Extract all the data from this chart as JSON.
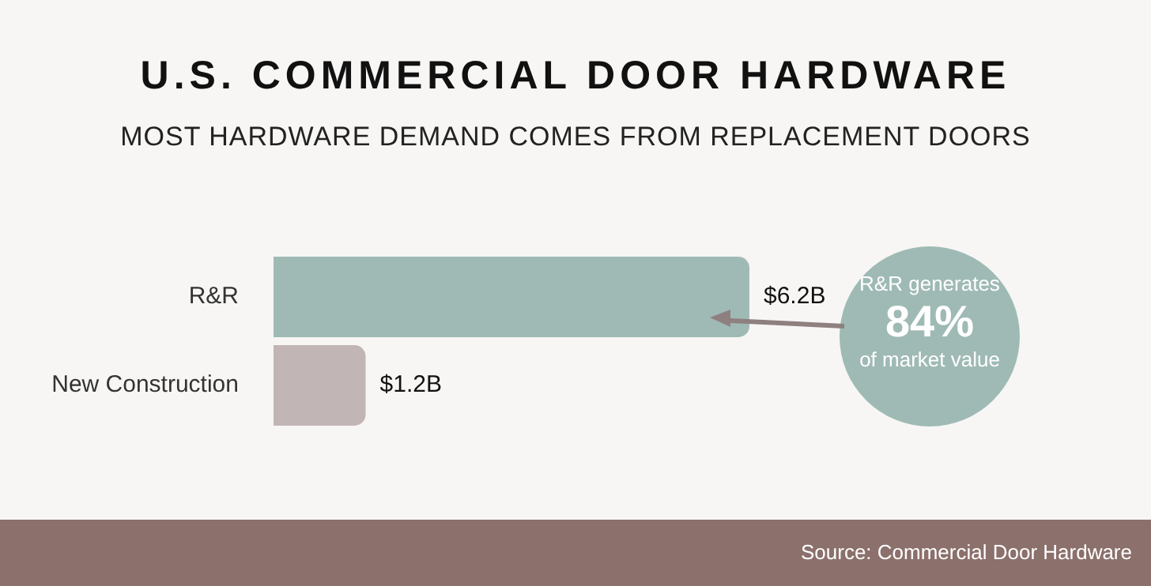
{
  "chart_data": {
    "type": "bar",
    "orientation": "horizontal",
    "title": "U.S. COMMERCIAL DOOR HARDWARE",
    "subtitle": "MOST HARDWARE DEMAND COMES FROM REPLACEMENT DOORS",
    "categories": [
      "R&R",
      "New Construction"
    ],
    "values": [
      6.2,
      1.2
    ],
    "value_labels": [
      "$6.2B",
      "$1.2B"
    ],
    "colors": [
      "#9fbab5",
      "#c2b5b5"
    ],
    "grid": false,
    "legend": false,
    "tick_labels": "y",
    "annotations": [
      "R&R generates",
      "84%",
      "of market value",
      "Source: Commercial Door Hardware"
    ]
  }
}
